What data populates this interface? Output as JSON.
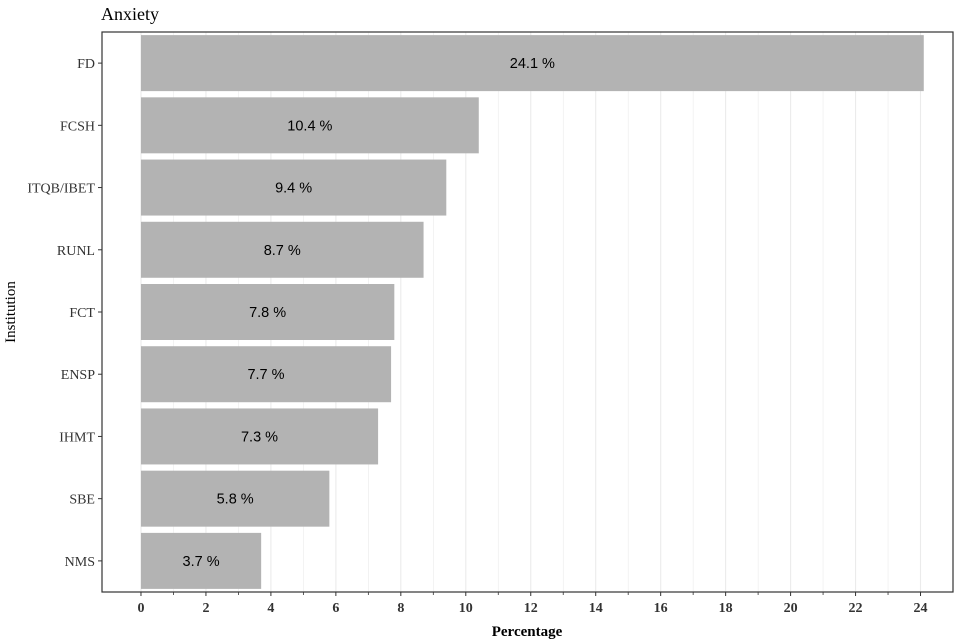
{
  "chart_data": {
    "type": "bar",
    "orientation": "horizontal",
    "title": "Anxiety",
    "xlabel": "Percentage",
    "ylabel": "Institution",
    "categories": [
      "FD",
      "FCSH",
      "ITQB/IBET",
      "RUNL",
      "FCT",
      "ENSP",
      "IHMT",
      "SBE",
      "NMS"
    ],
    "values": [
      24.1,
      10.4,
      9.4,
      8.7,
      7.8,
      7.7,
      7.3,
      5.8,
      3.7
    ],
    "data_labels": [
      "24.1 %",
      "10.4 %",
      "9.4 %",
      "8.7 %",
      "7.8 %",
      "7.7 %",
      "7.3 %",
      "5.8 %",
      "3.7 %"
    ],
    "xlim": [
      -1.2,
      25.0
    ],
    "xticks": [
      0,
      2,
      4,
      6,
      8,
      10,
      12,
      14,
      16,
      18,
      20,
      22,
      24
    ],
    "grid": true,
    "legend": "none",
    "colors": {
      "bar": "#b3b3b3",
      "grid": "#ebebeb",
      "panel_border": "#333333",
      "text": "#000000"
    }
  }
}
